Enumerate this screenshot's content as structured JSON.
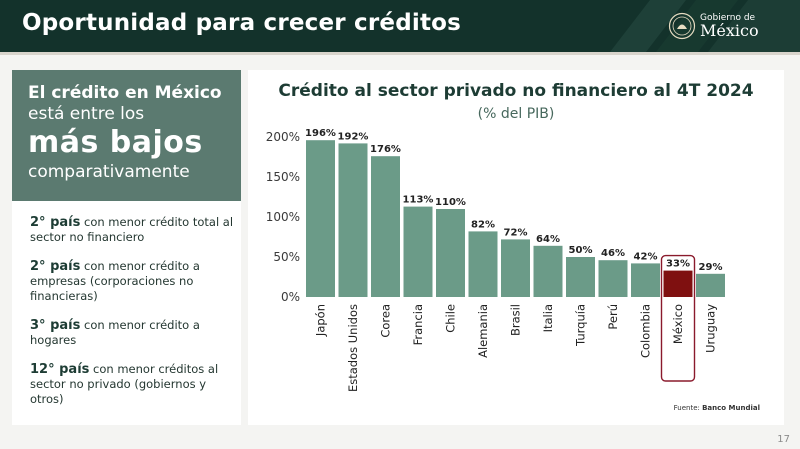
{
  "header": {
    "title": "Oportunidad para crecer créditos",
    "logo_line1": "Gobierno de",
    "logo_line2": "México"
  },
  "left_panel": {
    "line1": "El crédito en México",
    "line2": "está entre los",
    "line3": "más bajos",
    "line4": "comparativamente",
    "facts": [
      {
        "bold": "2° país",
        "text": " con menor crédito total al sector no financiero"
      },
      {
        "bold": "2° país",
        "text": " con menor crédito a empresas (corporaciones no financieras)"
      },
      {
        "bold": "3° país",
        "text": " con menor crédito a hogares"
      },
      {
        "bold": "12° país",
        "text": " con menor créditos al sector no privado (gobiernos y otros)"
      }
    ]
  },
  "source": {
    "prefix": "Fuente: ",
    "name": "Banco Mundial"
  },
  "page_number": "17",
  "colors": {
    "header": "#13322b",
    "bar": "#6b9b88",
    "highlight": "#7f1010",
    "panel_accent": "#5b7a70"
  },
  "chart_data": {
    "type": "bar",
    "title": "Crédito al sector privado no financiero al 4T 2024",
    "subtitle": "(% del PIB)",
    "categories": [
      "Japón",
      "Estados Unidos",
      "Corea",
      "Francia",
      "Chile",
      "Alemania",
      "Brasil",
      "Italia",
      "Turquía",
      "Perú",
      "Colombia",
      "México",
      "Uruguay"
    ],
    "values": [
      196,
      192,
      176,
      113,
      110,
      82,
      72,
      64,
      50,
      46,
      42,
      33,
      29
    ],
    "value_labels": [
      "196%",
      "192%",
      "176%",
      "113%",
      "110%",
      "82%",
      "72%",
      "64%",
      "50%",
      "46%",
      "42%",
      "33%",
      "29%"
    ],
    "highlight": "México",
    "ylim": [
      0,
      200
    ],
    "yticks": [
      "0%",
      "50%",
      "100%",
      "150%",
      "200%"
    ],
    "ytick_values": [
      0,
      50,
      100,
      150,
      200
    ]
  }
}
